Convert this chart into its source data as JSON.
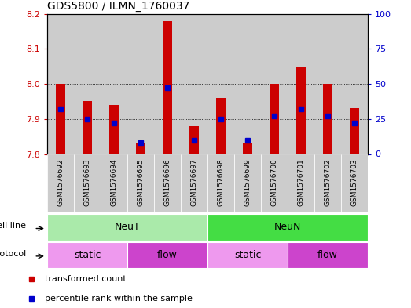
{
  "title": "GDS5800 / ILMN_1760037",
  "samples": [
    "GSM1576692",
    "GSM1576693",
    "GSM1576694",
    "GSM1576695",
    "GSM1576696",
    "GSM1576697",
    "GSM1576698",
    "GSM1576699",
    "GSM1576700",
    "GSM1576701",
    "GSM1576702",
    "GSM1576703"
  ],
  "transformed_count": [
    8.0,
    7.95,
    7.94,
    7.83,
    8.18,
    7.88,
    7.96,
    7.83,
    8.0,
    8.05,
    8.0,
    7.93
  ],
  "percentile_rank": [
    32,
    25,
    22,
    8,
    47,
    10,
    25,
    10,
    27,
    32,
    27,
    22
  ],
  "ylim_left": [
    7.8,
    8.2
  ],
  "ylim_right": [
    0,
    100
  ],
  "yticks_left": [
    7.8,
    7.9,
    8.0,
    8.1,
    8.2
  ],
  "yticks_right": [
    0,
    25,
    50,
    75,
    100
  ],
  "bar_color": "#cc0000",
  "dot_color": "#0000cc",
  "bg_color": "#cccccc",
  "cell_line_groups": [
    {
      "label": "NeuT",
      "start": 0,
      "end": 6,
      "color": "#aaeaaa"
    },
    {
      "label": "NeuN",
      "start": 6,
      "end": 12,
      "color": "#44dd44"
    }
  ],
  "protocol_groups": [
    {
      "label": "static",
      "start": 0,
      "end": 3,
      "color": "#ee99ee"
    },
    {
      "label": "flow",
      "start": 3,
      "end": 6,
      "color": "#cc44cc"
    },
    {
      "label": "static",
      "start": 6,
      "end": 9,
      "color": "#ee99ee"
    },
    {
      "label": "flow",
      "start": 9,
      "end": 12,
      "color": "#cc44cc"
    }
  ],
  "legend_items": [
    {
      "label": "transformed count",
      "color": "#cc0000"
    },
    {
      "label": "percentile rank within the sample",
      "color": "#0000cc"
    }
  ],
  "bar_width": 0.35,
  "ybase": 7.8,
  "grid_lines": [
    7.9,
    8.0,
    8.1
  ],
  "left_axis_color": "#cc0000",
  "right_axis_color": "#0000cc"
}
